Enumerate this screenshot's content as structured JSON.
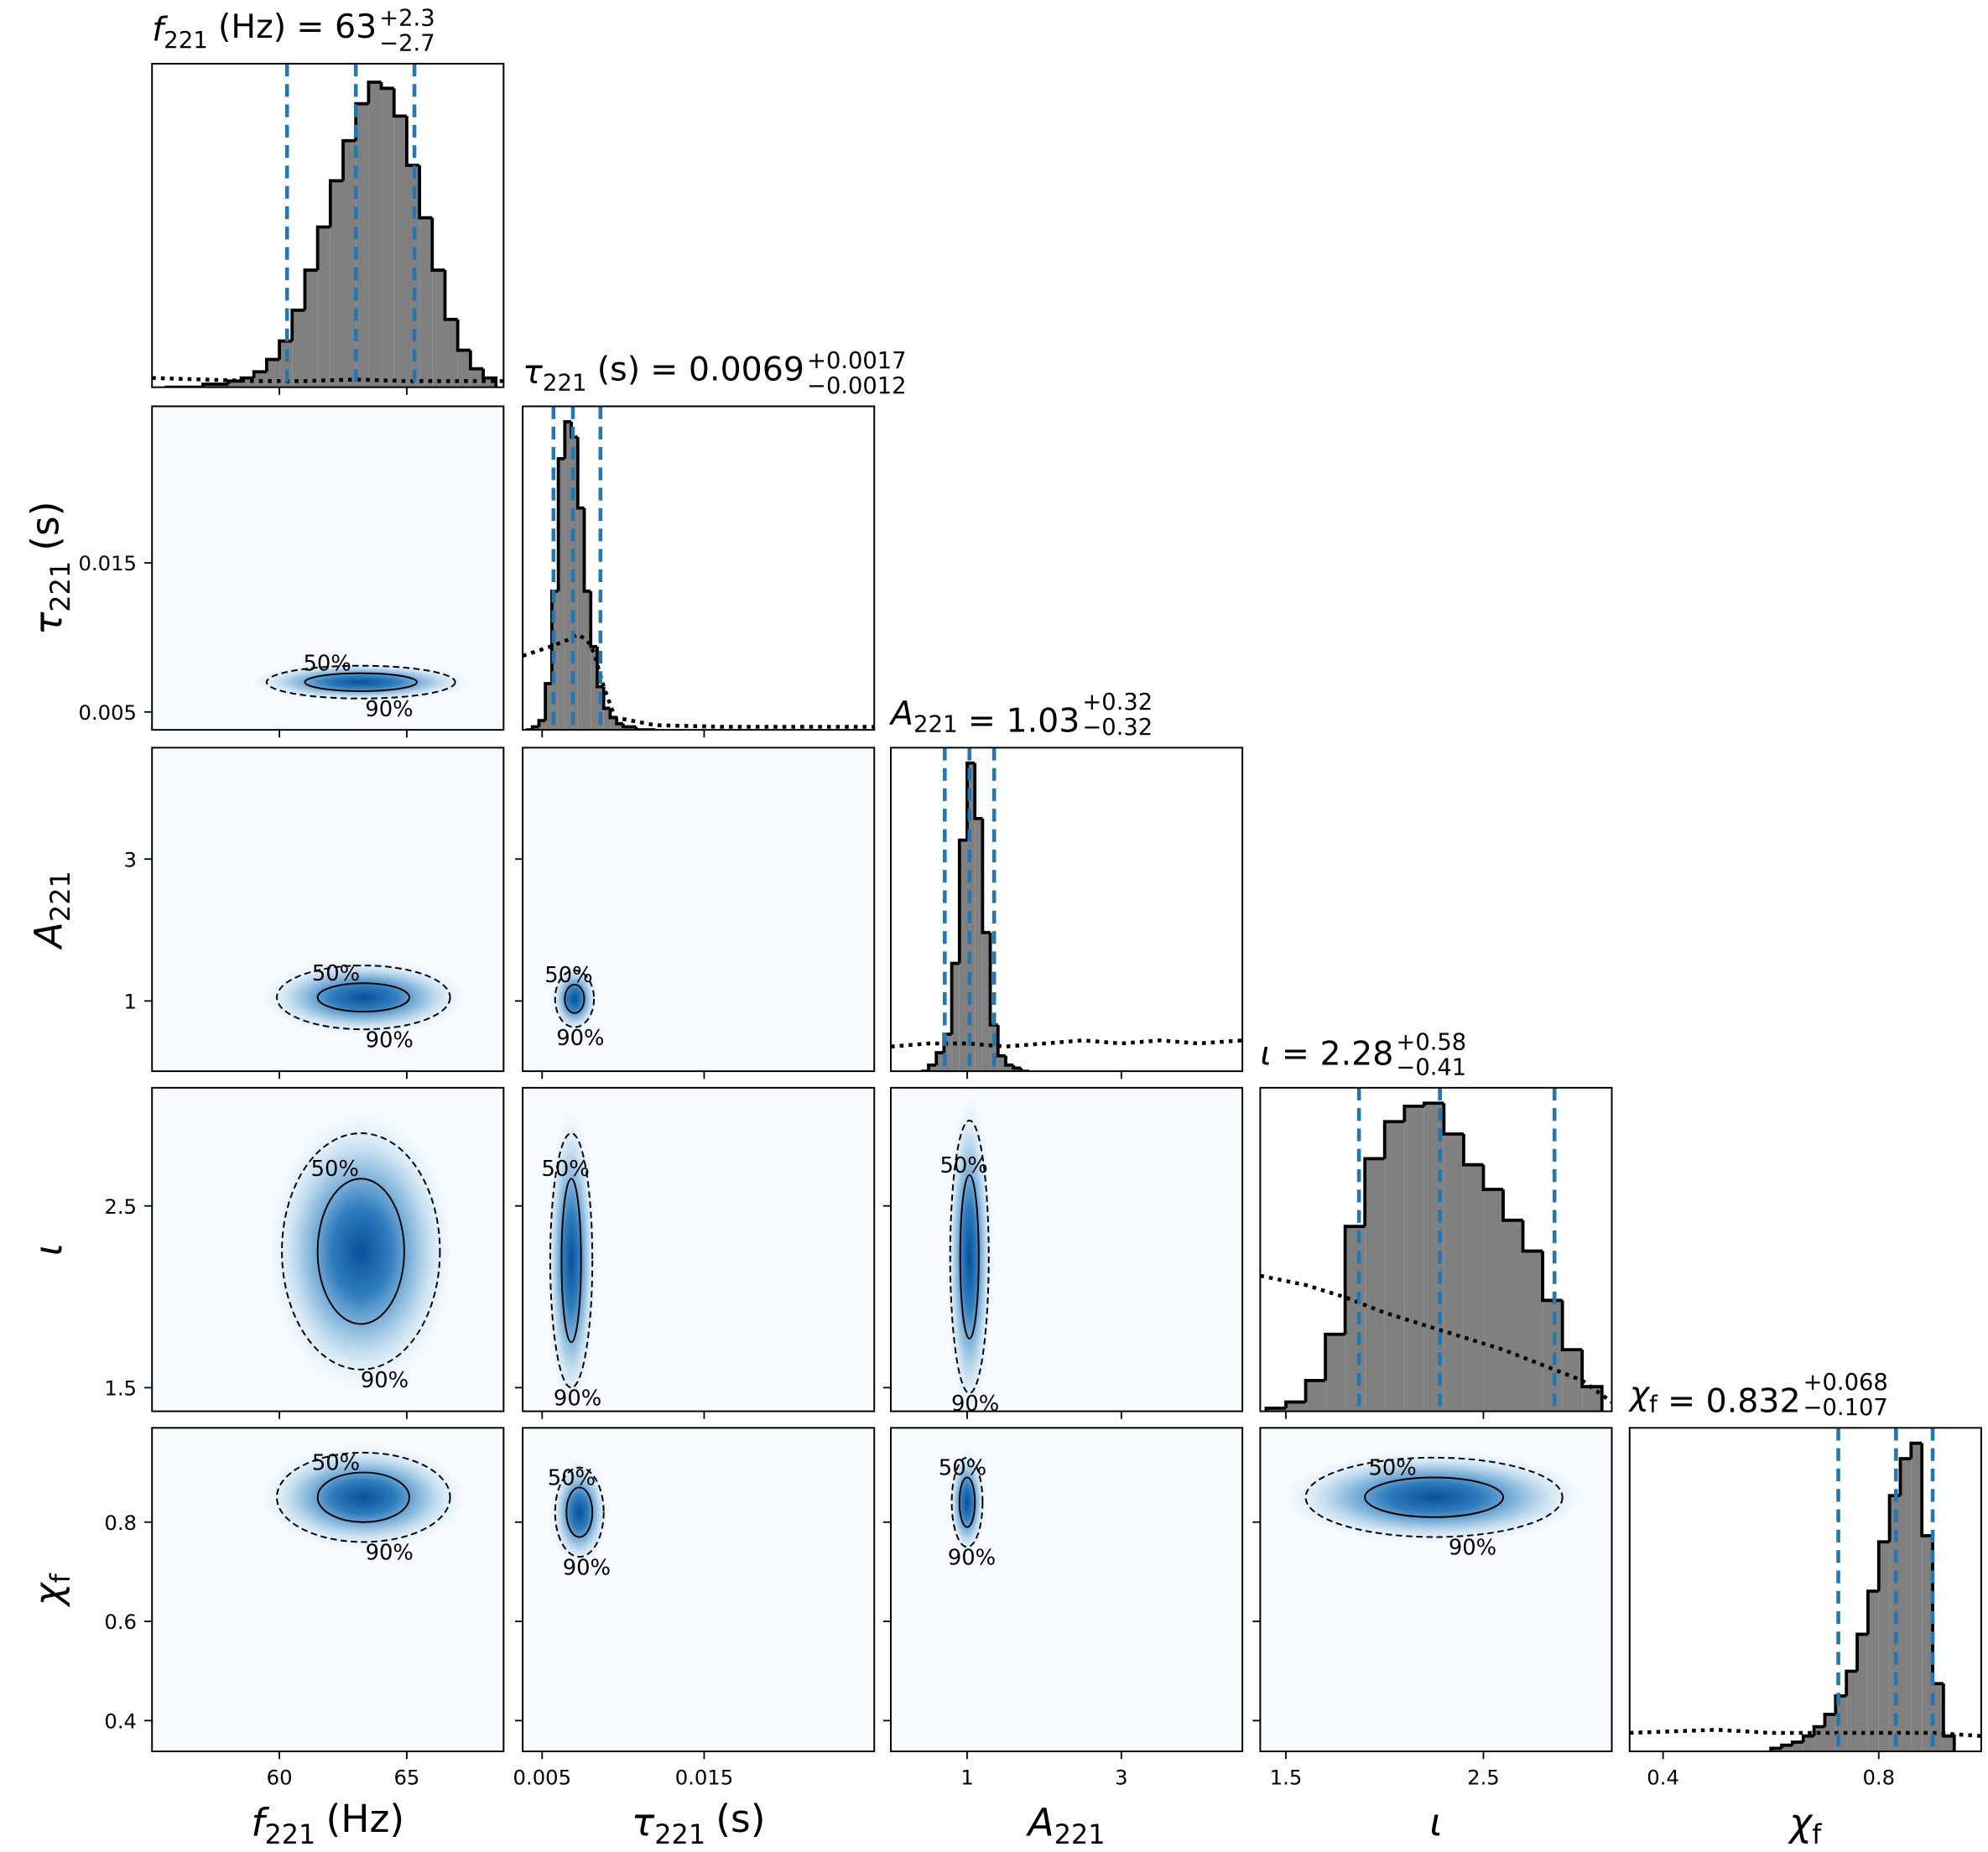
{
  "chart_data": {
    "type": "corner",
    "hist_color": "#808080",
    "quantile_color": "#1f77b4",
    "hist_ylim": [
      0,
      105
    ],
    "contour_labels": [
      "50%",
      "90%"
    ],
    "params": [
      {
        "symbol": "f",
        "sub": "221",
        "unit": "(Hz)",
        "estimate": {
          "text": "= 63",
          "plus": "+2.3",
          "minus": "−2.7"
        },
        "quantiles": [
          60.3,
          63,
          65.3
        ],
        "lim": [
          55,
          68.8
        ],
        "xticks": [
          60,
          65
        ],
        "yticks": [],
        "bins": [
          55.5,
          56,
          56.5,
          57,
          57.5,
          58,
          58.5,
          59,
          59.5,
          60,
          60.5,
          61,
          61.5,
          62,
          62.5,
          63,
          63.5,
          64,
          64.5,
          65,
          65.5,
          66,
          66.5,
          67,
          67.5,
          68,
          68.5
        ],
        "counts": [
          0,
          0,
          0,
          1,
          1,
          2,
          3,
          5,
          9,
          15,
          25,
          38,
          52,
          67,
          80,
          92,
          99,
          97,
          88,
          72,
          55,
          38,
          22,
          12,
          6,
          3
        ],
        "prior": {
          "x": [
            55,
            57,
            59,
            61,
            63,
            65,
            67,
            68.8
          ],
          "y": [
            3,
            2.5,
            2,
            2,
            2.5,
            2,
            2,
            2
          ]
        },
        "joint": []
      },
      {
        "symbol": "τ",
        "sub": "221",
        "unit": "(s)",
        "estimate": {
          "text": "= 0.0069",
          "plus": "+0.0017",
          "minus": "−0.0012"
        },
        "quantiles": [
          0.0057,
          0.0069,
          0.0086
        ],
        "lim": [
          0.0038,
          0.0255
        ],
        "xticks": [
          0.005,
          0.015
        ],
        "yticks": [
          0.005,
          0.015
        ],
        "bins": [
          0.004,
          0.0044,
          0.0048,
          0.0052,
          0.0056,
          0.006,
          0.0064,
          0.0068,
          0.0072,
          0.0076,
          0.008,
          0.0084,
          0.0088,
          0.0092,
          0.0096,
          0.01,
          0.0104,
          0.0108,
          0.0112,
          0.0116,
          0.012
        ],
        "counts": [
          0,
          1,
          3,
          15,
          45,
          88,
          100,
          95,
          72,
          45,
          27,
          14,
          7,
          4,
          2,
          1,
          1,
          0,
          0,
          0
        ],
        "prior": {
          "x": [
            0.0038,
            0.0055,
            0.0065,
            0.0072,
            0.0078,
            0.0082,
            0.0088,
            0.0095,
            0.012,
            0.016,
            0.02,
            0.0255
          ],
          "y": [
            24,
            27,
            29,
            31,
            29,
            25,
            14,
            4,
            1.5,
            1,
            1,
            1
          ]
        },
        "joint": [
          {
            "center": [
              63.2,
              0.007
            ],
            "c50": [
              2.2,
              0.0006
            ],
            "c90": [
              3.7,
              0.0011
            ]
          }
        ]
      },
      {
        "symbol": "A",
        "sub": "221",
        "estimate": {
          "text": "= 1.03",
          "plus": "+0.32",
          "minus": "−0.32"
        },
        "quantiles": [
          0.71,
          1.03,
          1.35
        ],
        "lim": [
          0.01,
          4.57
        ],
        "xticks": [
          1,
          3
        ],
        "yticks": [
          1,
          3
        ],
        "bins": [
          0.4,
          0.5,
          0.6,
          0.7,
          0.8,
          0.9,
          1.0,
          1.1,
          1.2,
          1.3,
          1.4,
          1.5,
          1.6,
          1.7,
          1.8
        ],
        "counts": [
          0,
          2,
          6,
          12,
          35,
          75,
          100,
          82,
          45,
          15,
          5,
          2,
          1,
          0
        ],
        "prior": {
          "x": [
            0.01,
            0.5,
            1.0,
            1.5,
            2.0,
            2.5,
            3.0,
            3.5,
            4.0,
            4.57
          ],
          "y": [
            8,
            9,
            9,
            8,
            9,
            10,
            9,
            10,
            9,
            10
          ]
        },
        "joint": [
          {
            "center": [
              63.3,
              1.05
            ],
            "c50": [
              1.8,
              0.2
            ],
            "c90": [
              3.4,
              0.45
            ]
          },
          {
            "center": [
              0.007,
              1.03
            ],
            "c50": [
              0.0006,
              0.2
            ],
            "c90": [
              0.0012,
              0.4
            ]
          }
        ]
      },
      {
        "symbol": "ι",
        "estimate": {
          "text": "= 2.28",
          "plus": "+0.58",
          "minus": "−0.41"
        },
        "quantiles": [
          1.87,
          2.28,
          2.86
        ],
        "lim": [
          1.37,
          3.15
        ],
        "xticks": [
          1.5,
          2.5
        ],
        "yticks": [
          1.5,
          2.5
        ],
        "bins": [
          1.4,
          1.5,
          1.6,
          1.7,
          1.8,
          1.9,
          2.0,
          2.1,
          2.2,
          2.3,
          2.4,
          2.5,
          2.6,
          2.7,
          2.8,
          2.9,
          3.0,
          3.1
        ],
        "counts": [
          1,
          3,
          10,
          25,
          60,
          82,
          94,
          99,
          100,
          90,
          80,
          72,
          62,
          52,
          36,
          20,
          8
        ],
        "prior": {
          "x": [
            1.37,
            1.6,
            1.8,
            2.0,
            2.2,
            2.4,
            2.6,
            2.8,
            3.0,
            3.15
          ],
          "y": [
            44,
            41,
            37,
            32,
            28,
            24,
            20,
            15,
            10,
            3
          ]
        },
        "joint": [
          {
            "center": [
              63.2,
              2.25
            ],
            "c50": [
              1.7,
              0.4
            ],
            "c90": [
              3.1,
              0.65
            ]
          },
          {
            "center": [
              0.0068,
              2.2
            ],
            "c50": [
              0.0006,
              0.45
            ],
            "c90": [
              0.0013,
              0.7
            ]
          },
          {
            "center": [
              1.03,
              2.22
            ],
            "c50": [
              0.12,
              0.45
            ],
            "c90": [
              0.25,
              0.75
            ]
          }
        ]
      },
      {
        "symbol": "χ",
        "sub": "f",
        "estimate": {
          "text": "= 0.832",
          "plus": "+0.068",
          "minus": "−0.107"
        },
        "quantiles": [
          0.725,
          0.832,
          0.9
        ],
        "lim": [
          0.338,
          0.99
        ],
        "xticks": [
          0.4,
          0.8
        ],
        "yticks": [
          0.4,
          0.6,
          0.8
        ],
        "bins": [
          0.6,
          0.62,
          0.64,
          0.66,
          0.68,
          0.7,
          0.72,
          0.74,
          0.76,
          0.78,
          0.8,
          0.82,
          0.84,
          0.86,
          0.88,
          0.9,
          0.92,
          0.94
        ],
        "counts": [
          1,
          2,
          3,
          5,
          8,
          12,
          18,
          26,
          38,
          52,
          68,
          83,
          95,
          100,
          70,
          22,
          5
        ],
        "prior": {
          "x": [
            0.338,
            0.5,
            0.6,
            0.7,
            0.8,
            0.9,
            0.99
          ],
          "y": [
            6,
            7,
            6,
            6,
            6,
            6,
            5
          ]
        },
        "joint": [
          {
            "center": [
              63.3,
              0.85
            ],
            "c50": [
              1.8,
              0.05
            ],
            "c90": [
              3.4,
              0.09
            ]
          },
          {
            "center": [
              0.0073,
              0.82
            ],
            "c50": [
              0.0008,
              0.05
            ],
            "c90": [
              0.0015,
              0.09
            ]
          },
          {
            "center": [
              1.0,
              0.84
            ],
            "c50": [
              0.1,
              0.05
            ],
            "c90": [
              0.2,
              0.09
            ]
          },
          {
            "center": [
              2.25,
              0.85
            ],
            "c50": [
              0.35,
              0.04
            ],
            "c90": [
              0.65,
              0.08
            ]
          }
        ]
      }
    ]
  }
}
